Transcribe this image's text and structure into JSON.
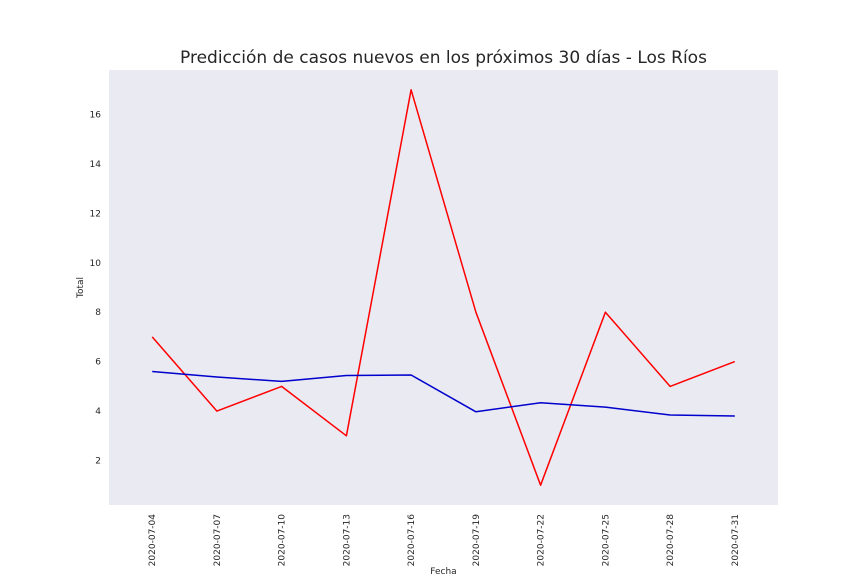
{
  "chart_data": {
    "type": "line",
    "title": "Predicción de casos nuevos en los próximos 30 días - Los Ríos",
    "xlabel": "Fecha",
    "ylabel": "Total",
    "x": [
      "2020-07-04",
      "2020-07-07",
      "2020-07-10",
      "2020-07-13",
      "2020-07-16",
      "2020-07-19",
      "2020-07-22",
      "2020-07-25",
      "2020-07-28",
      "2020-07-31"
    ],
    "x_ticks": [
      "2020-07-04",
      "2020-07-07",
      "2020-07-10",
      "2020-07-13",
      "2020-07-16",
      "2020-07-19",
      "2020-07-22",
      "2020-07-25",
      "2020-07-28",
      "2020-07-31"
    ],
    "y_ticks": [
      2,
      4,
      6,
      8,
      10,
      12,
      14,
      16
    ],
    "ylim": [
      0.2,
      17.8
    ],
    "xlim": [
      "2020-07-02",
      "2020-08-02"
    ],
    "grid": false,
    "background": "#eaeaf2",
    "series": [
      {
        "color": "#ff0000",
        "values": [
          7,
          4,
          5,
          3,
          17,
          8,
          1,
          8,
          5,
          6
        ]
      },
      {
        "color": "#0000cd",
        "values": [
          5.6,
          5.38,
          5.2,
          5.44,
          5.46,
          3.97,
          4.34,
          4.16,
          3.84,
          3.8
        ]
      }
    ]
  }
}
